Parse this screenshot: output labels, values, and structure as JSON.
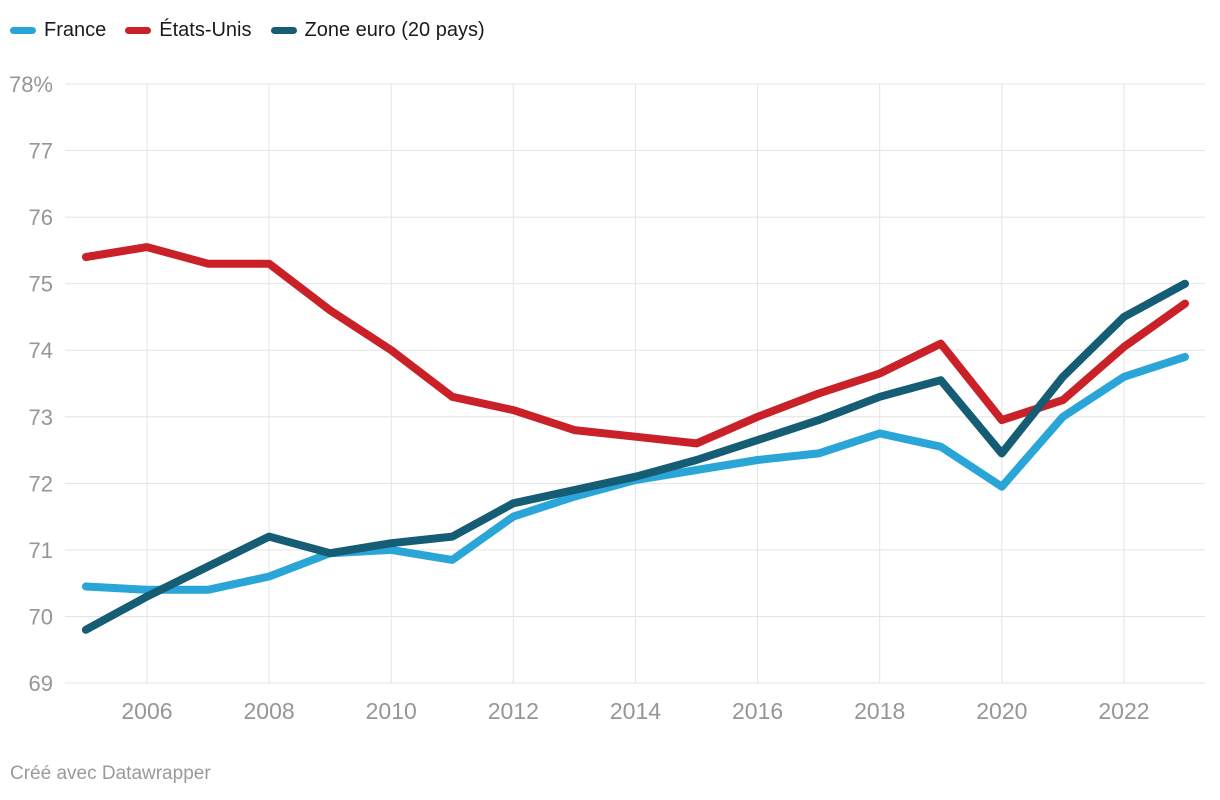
{
  "legend": {
    "items": [
      {
        "label": "France",
        "color": "#2aa5d8"
      },
      {
        "label": "États-Unis",
        "color": "#c92127"
      },
      {
        "label": "Zone euro (20 pays)",
        "color": "#155c75"
      }
    ]
  },
  "footer": {
    "credit": "Créé avec Datawrapper"
  },
  "chart_data": {
    "type": "line",
    "unit": "%",
    "x": [
      2005,
      2006,
      2007,
      2008,
      2009,
      2010,
      2011,
      2012,
      2013,
      2014,
      2015,
      2016,
      2017,
      2018,
      2019,
      2020,
      2021,
      2022,
      2023
    ],
    "series": [
      {
        "name": "France",
        "color": "#2aa5d8",
        "values": [
          70.45,
          70.4,
          70.4,
          70.6,
          70.95,
          71.0,
          70.85,
          71.5,
          71.8,
          72.05,
          72.2,
          72.35,
          72.45,
          72.75,
          72.55,
          71.95,
          73.0,
          73.6,
          73.9
        ]
      },
      {
        "name": "États-Unis",
        "color": "#c92127",
        "values": [
          75.4,
          75.55,
          75.3,
          75.3,
          74.6,
          74.0,
          73.3,
          73.1,
          72.8,
          72.7,
          72.6,
          73.0,
          73.35,
          73.65,
          74.1,
          72.95,
          73.25,
          74.05,
          74.7
        ]
      },
      {
        "name": "Zone euro (20 pays)",
        "color": "#155c75",
        "values": [
          69.8,
          70.3,
          70.75,
          71.2,
          70.95,
          71.1,
          71.2,
          71.7,
          71.9,
          72.1,
          72.35,
          72.65,
          72.95,
          73.3,
          73.55,
          72.45,
          73.6,
          74.5,
          75.0
        ]
      }
    ],
    "ylim": [
      69,
      78
    ],
    "yticks": [
      {
        "value": 78,
        "label": "78%"
      },
      {
        "value": 77,
        "label": "77"
      },
      {
        "value": 76,
        "label": "76"
      },
      {
        "value": 75,
        "label": "75"
      },
      {
        "value": 74,
        "label": "74"
      },
      {
        "value": 73,
        "label": "73"
      },
      {
        "value": 72,
        "label": "72"
      },
      {
        "value": 71,
        "label": "71"
      },
      {
        "value": 70,
        "label": "70"
      },
      {
        "value": 69,
        "label": "69"
      }
    ],
    "xticks": [
      {
        "value": 2006,
        "label": "2006"
      },
      {
        "value": 2008,
        "label": "2008"
      },
      {
        "value": 2010,
        "label": "2010"
      },
      {
        "value": 2012,
        "label": "2012"
      },
      {
        "value": 2014,
        "label": "2014"
      },
      {
        "value": 2016,
        "label": "2016"
      },
      {
        "value": 2018,
        "label": "2018"
      },
      {
        "value": 2020,
        "label": "2020"
      },
      {
        "value": 2022,
        "label": "2022"
      }
    ],
    "grid": true,
    "legend_position": "top",
    "tick_color": "#969696",
    "grid_color": "#e4e4e4"
  }
}
